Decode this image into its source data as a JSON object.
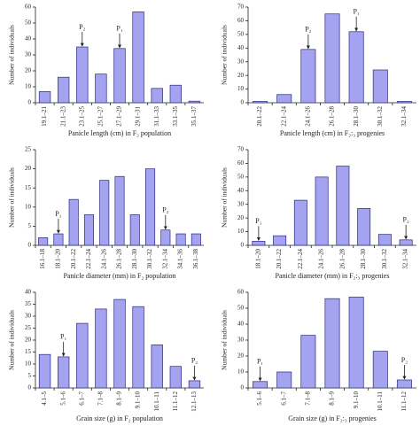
{
  "chart_data": [
    {
      "type": "bar",
      "xlabel": "Panicle length (cm) in F₂ population",
      "ylabel": "Number of individuals",
      "categories": [
        "19.1–21",
        "21.1–23",
        "23.1–25",
        "25.1–27",
        "27.1–29",
        "29.1–31",
        "31.1–33",
        "33.1–35",
        "35.1–37"
      ],
      "values": [
        7,
        16,
        35,
        18,
        34,
        57,
        9,
        11,
        1
      ],
      "color": "#a3a3f0",
      "ylim": [
        0,
        60
      ],
      "yticks": [
        0,
        10,
        20,
        30,
        40,
        50,
        60
      ],
      "annotations": [
        {
          "text": "P₂",
          "category": "23.1–25"
        },
        {
          "text": "P₁",
          "category": "27.1–29"
        }
      ]
    },
    {
      "type": "bar",
      "xlabel": "Panicle length (cm) in F₂:₃ progenies",
      "ylabel": "Number of individuals",
      "categories": [
        "20.1–22",
        "22.1–24",
        "24.1–26",
        "26.1–28",
        "28.1–30",
        "30.1–32",
        "32.1–34"
      ],
      "values": [
        1,
        6,
        39,
        65,
        52,
        24,
        1
      ],
      "color": "#a3a3f0",
      "ylim": [
        0,
        70
      ],
      "yticks": [
        0,
        10,
        20,
        30,
        40,
        50,
        60,
        70
      ],
      "annotations": [
        {
          "text": "P₂",
          "category": "24.1–26"
        },
        {
          "text": "P₁",
          "category": "28.1–30"
        }
      ]
    },
    {
      "type": "bar",
      "xlabel": "Panicle diameter (mm) in F₂ population",
      "ylabel": "Number of individuals",
      "categories": [
        "16.1–18",
        "18.1–20",
        "20.1–22",
        "22.1–24",
        "24.1–26",
        "26.1–28",
        "28.1–30",
        "30.1–32",
        "32.1–34",
        "34.1–36",
        "36.1–38"
      ],
      "values": [
        2,
        3,
        12,
        8,
        17,
        18,
        8,
        20,
        4,
        3,
        3
      ],
      "color": "#a3a3f0",
      "ylim": [
        0,
        25
      ],
      "yticks": [
        0,
        5,
        10,
        15,
        20,
        25
      ],
      "annotations": [
        {
          "text": "P₁",
          "category": "18.1–20"
        },
        {
          "text": "P₂",
          "category": "32.1–34"
        }
      ]
    },
    {
      "type": "bar",
      "xlabel": "Panicle diameter (mm) in F₂:₃ progenies",
      "ylabel": "Number of individuals",
      "categories": [
        "18.1–20",
        "20.1–22",
        "22.1–24",
        "24.1–26",
        "26.1–28",
        "28.1–30",
        "30.1–32",
        "32.1–34"
      ],
      "values": [
        3,
        7,
        33,
        50,
        58,
        27,
        8,
        4
      ],
      "color": "#a3a3f0",
      "ylim": [
        0,
        70
      ],
      "yticks": [
        0,
        10,
        20,
        30,
        40,
        50,
        60,
        70
      ],
      "annotations": [
        {
          "text": "P₁",
          "category": "18.1–20"
        },
        {
          "text": "P₂",
          "category": "32.1–34"
        }
      ]
    },
    {
      "type": "bar",
      "xlabel": "Grain size (g) in F₂ population",
      "ylabel": "Number of individuals",
      "categories": [
        "4.1–5",
        "5.1–6",
        "6.1–7",
        "7.1–8",
        "8.1–9",
        "9.1–10",
        "10.1–11",
        "11.1–12",
        "12.1–13"
      ],
      "values": [
        14,
        13,
        27,
        33,
        37,
        34,
        18,
        9,
        3
      ],
      "color": "#a3a3f0",
      "ylim": [
        0,
        40
      ],
      "yticks": [
        0,
        5,
        10,
        15,
        20,
        25,
        30,
        35,
        40
      ],
      "annotations": [
        {
          "text": "P₁",
          "category": "5.1–6"
        },
        {
          "text": "P₂",
          "category": "12.1–13"
        }
      ]
    },
    {
      "type": "bar",
      "xlabel": "Grain size (g) in F₂:₃ progenies",
      "ylabel": "Number of individuals",
      "categories": [
        "5.1–6",
        "6.1–7",
        "7.1–8",
        "8.1–9",
        "9.1–10",
        "10.1–11",
        "11.1–12"
      ],
      "values": [
        4,
        10,
        33,
        56,
        57,
        23,
        5
      ],
      "color": "#a3a3f0",
      "ylim": [
        0,
        60
      ],
      "yticks": [
        0,
        10,
        20,
        30,
        40,
        50,
        60
      ],
      "annotations": [
        {
          "text": "P₁",
          "category": "5.1–6"
        },
        {
          "text": "P₂",
          "category": "11.1–12"
        }
      ]
    }
  ]
}
